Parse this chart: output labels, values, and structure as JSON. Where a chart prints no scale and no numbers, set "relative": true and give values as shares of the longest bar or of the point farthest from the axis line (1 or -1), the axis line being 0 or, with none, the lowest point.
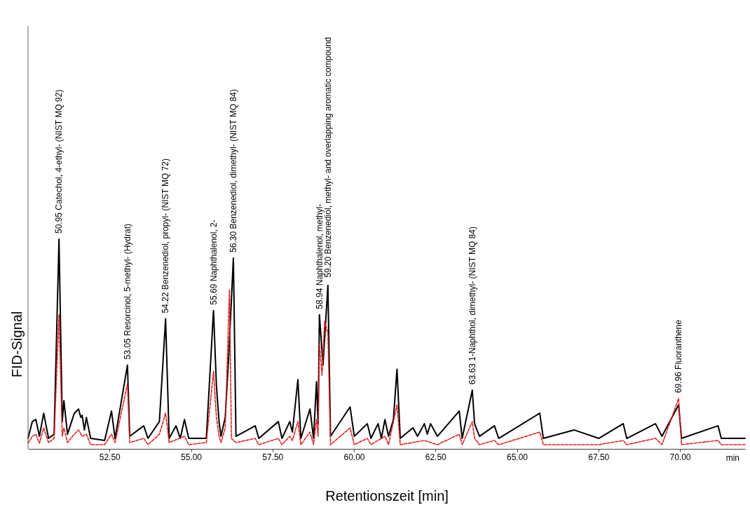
{
  "chart_data": {
    "type": "line",
    "relative": true,
    "xlabel": "Retentionszeit [min]",
    "ylabel": "FID-Signal",
    "xlim": [
      50,
      72
    ],
    "xticks": [
      {
        "value": 52.5,
        "label": "52.50"
      },
      {
        "value": 55,
        "label": "55.00"
      },
      {
        "value": 57.5,
        "label": "57.50"
      },
      {
        "value": 60,
        "label": "60.00"
      },
      {
        "value": 62.5,
        "label": "62.50"
      },
      {
        "value": 65,
        "label": "65.00"
      },
      {
        "value": 67.5,
        "label": "67.50"
      },
      {
        "value": 70,
        "label": "70.00"
      }
    ],
    "tick_labels": "x",
    "grid": false,
    "series": [
      {
        "color": "#000000",
        "line_style": "solid",
        "x": [
          50.0,
          50.13,
          50.24,
          50.35,
          50.48,
          50.63,
          50.8,
          50.95,
          51.05,
          51.1,
          51.21,
          51.42,
          51.55,
          51.62,
          51.66,
          51.73,
          51.79,
          51.92,
          52.35,
          52.56,
          52.67,
          53.05,
          53.12,
          53.55,
          53.68,
          54.03,
          54.22,
          54.33,
          54.54,
          54.67,
          54.8,
          54.93,
          55.47,
          55.69,
          55.78,
          55.86,
          55.92,
          56.05,
          56.16,
          56.3,
          56.38,
          56.97,
          57.08,
          57.68,
          57.79,
          58.03,
          58.11,
          58.28,
          58.37,
          58.65,
          58.76,
          58.85,
          58.9,
          58.94,
          59.05,
          59.2,
          59.28,
          59.88,
          60.01,
          60.41,
          60.52,
          60.74,
          60.84,
          60.95,
          61.06,
          61.21,
          61.32,
          61.42,
          61.81,
          61.95,
          62.16,
          62.25,
          62.35,
          62.56,
          63.23,
          63.32,
          63.63,
          63.7,
          63.85,
          64.31,
          64.44,
          65.7,
          65.81,
          66.76,
          67.51,
          68.26,
          68.37,
          69.25,
          69.45,
          69.96,
          70.05,
          71.17,
          71.27,
          72.0
        ],
        "values": [
          0.05,
          0.13,
          0.14,
          0.06,
          0.17,
          0.05,
          0.07,
          1.0,
          0.13,
          0.23,
          0.07,
          0.17,
          0.19,
          0.15,
          0.16,
          0.09,
          0.15,
          0.05,
          0.04,
          0.18,
          0.05,
          0.4,
          0.06,
          0.11,
          0.05,
          0.13,
          0.62,
          0.05,
          0.11,
          0.05,
          0.14,
          0.05,
          0.05,
          0.66,
          0.3,
          0.13,
          0.06,
          0.15,
          0.45,
          0.91,
          0.06,
          0.11,
          0.05,
          0.13,
          0.05,
          0.13,
          0.08,
          0.33,
          0.05,
          0.19,
          0.05,
          0.32,
          0.12,
          0.64,
          0.4,
          0.78,
          0.06,
          0.2,
          0.06,
          0.12,
          0.05,
          0.12,
          0.05,
          0.14,
          0.06,
          0.14,
          0.38,
          0.05,
          0.1,
          0.06,
          0.12,
          0.07,
          0.12,
          0.06,
          0.18,
          0.05,
          0.28,
          0.12,
          0.06,
          0.11,
          0.05,
          0.17,
          0.05,
          0.09,
          0.05,
          0.12,
          0.05,
          0.12,
          0.06,
          0.21,
          0.05,
          0.11,
          0.05,
          0.05
        ]
      },
      {
        "color": "#e02020",
        "line_style": "dashed",
        "x": [
          50.0,
          50.13,
          50.24,
          50.35,
          50.48,
          50.63,
          50.8,
          50.95,
          51.05,
          51.1,
          51.21,
          51.42,
          51.55,
          51.66,
          51.79,
          51.92,
          52.35,
          52.56,
          52.67,
          53.05,
          53.12,
          53.55,
          53.68,
          54.03,
          54.22,
          54.33,
          54.8,
          54.93,
          55.47,
          55.69,
          55.78,
          55.86,
          55.92,
          56.05,
          56.18,
          56.24,
          56.38,
          56.97,
          57.08,
          57.68,
          57.79,
          58.03,
          58.11,
          58.28,
          58.37,
          58.65,
          58.76,
          58.85,
          58.9,
          58.94,
          59.02,
          59.1,
          59.2,
          59.28,
          59.88,
          60.01,
          60.41,
          60.52,
          60.95,
          61.06,
          61.32,
          61.42,
          62.16,
          62.56,
          63.23,
          63.32,
          63.63,
          63.7,
          63.85,
          64.31,
          64.44,
          65.7,
          65.81,
          67.51,
          68.26,
          68.37,
          69.25,
          69.45,
          69.96,
          70.05,
          71.17,
          71.27,
          72.0
        ],
        "values": [
          0.027,
          0.06,
          0.07,
          0.027,
          0.1,
          0.03,
          0.05,
          0.64,
          0.06,
          0.1,
          0.03,
          0.07,
          0.09,
          0.06,
          0.07,
          0.02,
          0.02,
          0.07,
          0.03,
          0.31,
          0.03,
          0.05,
          0.02,
          0.07,
          0.17,
          0.03,
          0.06,
          0.02,
          0.03,
          0.37,
          0.15,
          0.06,
          0.03,
          0.1,
          0.76,
          0.05,
          0.03,
          0.05,
          0.02,
          0.05,
          0.02,
          0.06,
          0.04,
          0.13,
          0.02,
          0.08,
          0.02,
          0.14,
          0.06,
          0.5,
          0.35,
          0.61,
          0.55,
          0.02,
          0.1,
          0.02,
          0.05,
          0.02,
          0.06,
          0.02,
          0.21,
          0.02,
          0.04,
          0.02,
          0.07,
          0.02,
          0.13,
          0.05,
          0.02,
          0.04,
          0.02,
          0.08,
          0.02,
          0.02,
          0.04,
          0.02,
          0.05,
          0.02,
          0.24,
          0.02,
          0.04,
          0.02,
          0.02
        ]
      }
    ],
    "annotations": [
      {
        "text": "50.95  Catechol, 4-ethyl-   (NIST MQ 92)",
        "x": 50.95,
        "y": 1.0
      },
      {
        "text": "53.05  Resorcinol, 5-methyl-  (Hydrat)",
        "x": 53.05,
        "y": 0.4
      },
      {
        "text": "54.22  Benzenediol, propyl-   (NIST MQ 72)",
        "x": 54.22,
        "y": 0.62
      },
      {
        "text": "55.69  Naphthalenol, 2-",
        "x": 55.69,
        "y": 0.66
      },
      {
        "text": "56.30  Benzenediol, dimethyl-   (NIST MQ 84)",
        "x": 56.3,
        "y": 0.91
      },
      {
        "text": "58.94  Naphthalenol, methyl-",
        "x": 58.94,
        "y": 0.64
      },
      {
        "text": "59.20  Benzenediol, methyl- and overlapping aromatic compound",
        "x": 59.2,
        "y": 0.79
      },
      {
        "text": "63.63  1-Naphthol, dimethyl-   (NIST MQ 84)",
        "x": 63.63,
        "y": 0.28
      },
      {
        "text": "69.96  Fluoranthene",
        "x": 69.96,
        "y": 0.24
      },
      "min"
    ]
  }
}
